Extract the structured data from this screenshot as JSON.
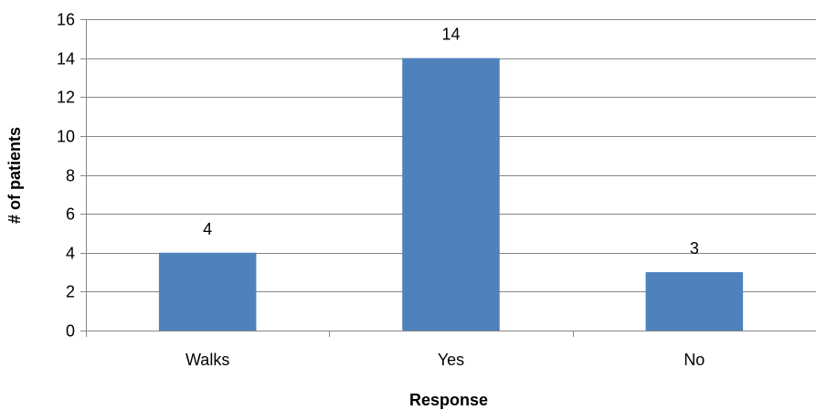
{
  "chart_data": {
    "type": "bar",
    "title": "",
    "xlabel": "Response",
    "ylabel": "# of patients",
    "categories": [
      "Walks",
      "Yes",
      "No"
    ],
    "values": [
      4,
      14,
      3
    ],
    "data_labels": [
      "4",
      "14",
      "3"
    ],
    "ylim": [
      0,
      16
    ],
    "yticks": [
      0,
      2,
      4,
      6,
      8,
      10,
      12,
      14,
      16
    ],
    "grid": true,
    "legend": "none",
    "colors": {
      "bar": "#4F81BD",
      "grid": "#868686",
      "axis": "#868686"
    }
  }
}
